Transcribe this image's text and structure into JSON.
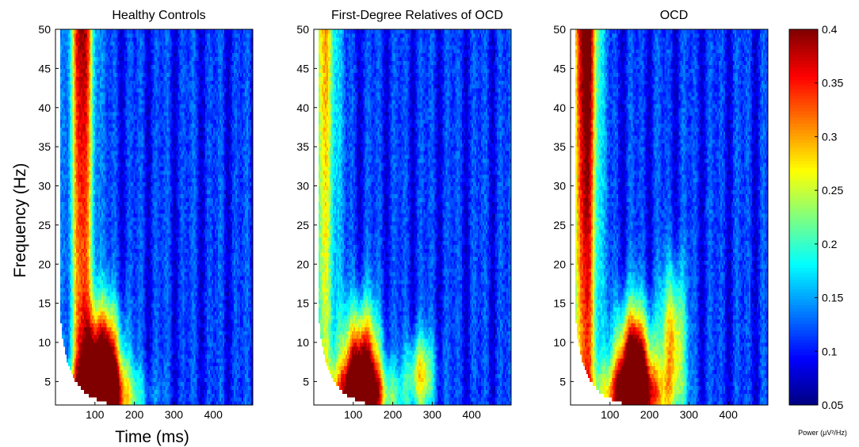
{
  "chart_data": {
    "type": "heatmap",
    "panels": [
      {
        "title": "Healthy Controls",
        "early_peak_center_ms": 68,
        "late_peak_center_ms": 120,
        "early_strength": 0.85,
        "late_low_freq_strength": 1.0
      },
      {
        "title": "First-Degree Relatives of OCD",
        "early_peak_center_ms": 30,
        "late_peak_center_ms": 120,
        "early_strength": 0.55,
        "late_low_freq_strength": 0.85
      },
      {
        "title": "OCD",
        "early_peak_center_ms": 40,
        "late_peak_center_ms": 160,
        "early_strength": 1.0,
        "late_low_freq_strength": 1.0
      }
    ],
    "xlabel": "Time (ms)",
    "ylabel": "Frequency (Hz)",
    "xticks": [
      "100",
      "200",
      "300",
      "400"
    ],
    "yticks": [
      "5",
      "10",
      "15",
      "20",
      "25",
      "30",
      "35",
      "40",
      "45",
      "50"
    ],
    "xlim": [
      0,
      500
    ],
    "ylim": [
      2,
      50
    ],
    "colorbar": {
      "label": "Power (μV²/Hz)",
      "ticks": [
        "0.05",
        "0.1",
        "0.15",
        "0.2",
        "0.25",
        "0.3",
        "0.35",
        "0.4"
      ],
      "range": [
        0.05,
        0.4
      ],
      "colormap": "jet"
    }
  }
}
